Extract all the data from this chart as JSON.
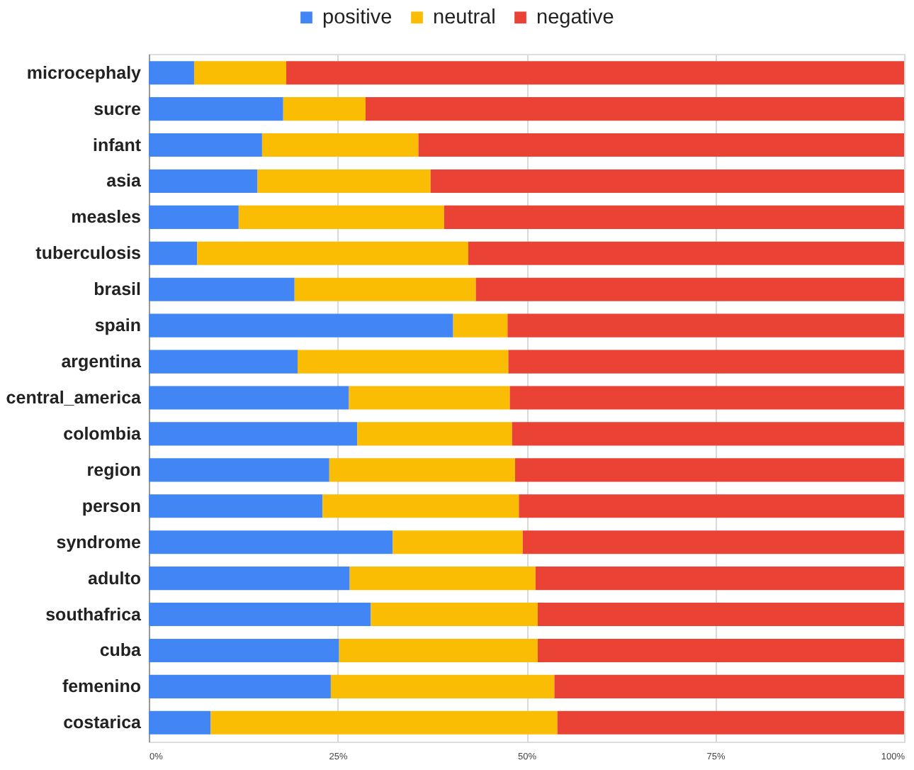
{
  "chart_data": {
    "type": "bar",
    "orientation": "horizontal",
    "stacked": true,
    "categories": [
      "microcephaly",
      "sucre",
      "infant",
      "asia",
      "measles",
      "tuberculosis",
      "brasil",
      "spain",
      "argentina",
      "central_america",
      "colombia",
      "region",
      "person",
      "syndrome",
      "adulto",
      "southafrica",
      "cuba",
      "femenino",
      "costarica"
    ],
    "series": [
      {
        "name": "positive",
        "color": "#4285f4",
        "values": [
          6.0,
          17.8,
          15.0,
          14.4,
          11.9,
          6.4,
          19.3,
          40.3,
          19.7,
          26.5,
          27.6,
          23.9,
          23.0,
          32.3,
          26.6,
          29.4,
          25.2,
          24.1,
          8.2
        ]
      },
      {
        "name": "neutral",
        "color": "#fbbc04",
        "values": [
          12.2,
          10.9,
          20.7,
          22.9,
          27.2,
          35.9,
          24.0,
          7.2,
          27.9,
          21.3,
          20.5,
          24.6,
          26.0,
          17.2,
          24.6,
          22.1,
          26.3,
          29.6,
          45.9
        ]
      },
      {
        "name": "negative",
        "color": "#ea4335",
        "values": [
          81.8,
          71.3,
          64.3,
          62.7,
          60.9,
          57.7,
          56.7,
          52.5,
          52.4,
          52.2,
          51.9,
          51.5,
          51.0,
          50.5,
          48.8,
          48.5,
          48.5,
          46.3,
          45.9
        ]
      }
    ],
    "xlim": [
      0,
      100
    ],
    "xticks": [
      {
        "value": 0,
        "label": "0%"
      },
      {
        "value": 25,
        "label": "25%"
      },
      {
        "value": 50,
        "label": "50%"
      },
      {
        "value": 75,
        "label": "75%"
      },
      {
        "value": 100,
        "label": "100%"
      }
    ],
    "grid": "x",
    "legend": "top"
  }
}
